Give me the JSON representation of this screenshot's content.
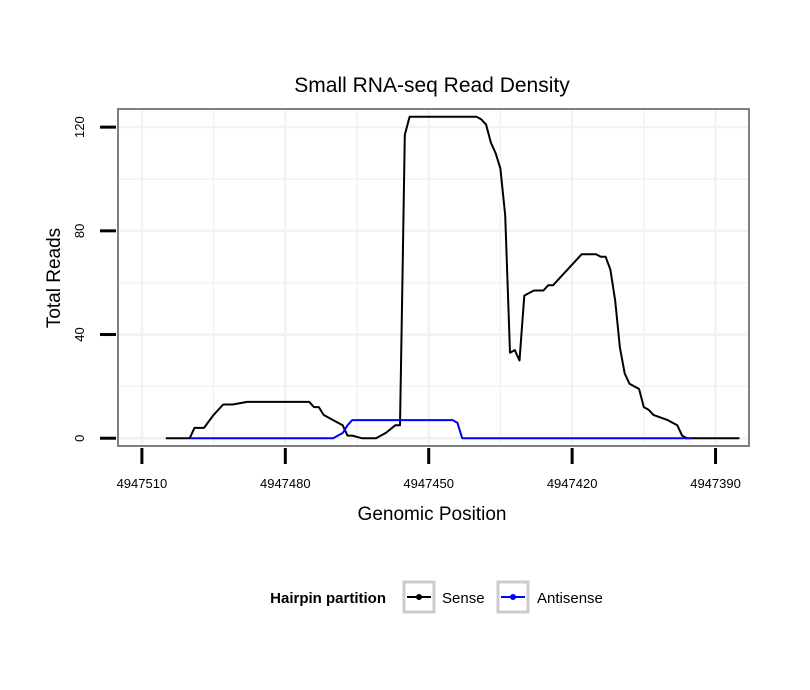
{
  "chart_data": {
    "type": "line",
    "title": "Small RNA-seq Read Density",
    "xlabel": "Genomic Position",
    "ylabel": "Total Reads",
    "x_reversed": true,
    "xlim": [
      4947515,
      4947383
    ],
    "ylim": [
      -3,
      127
    ],
    "x_ticks": [
      4947510,
      4947480,
      4947450,
      4947420,
      4947390
    ],
    "x_tick_labels": [
      "4947510",
      "4947480",
      "4947450",
      "4947420",
      "4947390"
    ],
    "y_ticks": [
      0,
      40,
      80,
      120
    ],
    "y_tick_labels": [
      "0",
      "40",
      "80",
      "120"
    ],
    "grid": true,
    "legend": {
      "title": "Hairpin partition",
      "position": "bottom",
      "entries": [
        "Sense",
        "Antisense"
      ]
    },
    "series": [
      {
        "name": "Sense",
        "color": "#000000",
        "x": [
          4947505,
          4947500,
          4947499,
          4947497,
          4947495,
          4947493,
          4947491,
          4947488,
          4947486,
          4947482,
          4947479,
          4947477,
          4947475,
          4947474,
          4947473,
          4947472,
          4947470,
          4947468,
          4947467,
          4947466,
          4947464,
          4947461,
          4947459,
          4947457,
          4947456,
          4947455.5,
          4947455,
          4947454,
          4947445,
          4947440,
          4947439,
          4947438,
          4947437,
          4947436,
          4947435,
          4947434,
          4947433,
          4947432,
          4947431,
          4947430,
          4947428,
          4947426,
          4947425,
          4947424,
          4947418,
          4947416,
          4947415,
          4947414,
          4947413,
          4947412,
          4947411,
          4947410,
          4947409,
          4947408,
          4947406,
          4947405,
          4947404,
          4947403,
          4947400,
          4947398,
          4947397,
          4947396,
          4947395,
          4947385
        ],
        "y": [
          0,
          0,
          4,
          4,
          9,
          13,
          13,
          14,
          14,
          14,
          14,
          14,
          14,
          12,
          12,
          9,
          7,
          5,
          1,
          1,
          0,
          0,
          2,
          5,
          5,
          60,
          117,
          124,
          124,
          124,
          123,
          121,
          114,
          110,
          104,
          86,
          33,
          34,
          30,
          55,
          57,
          57,
          59,
          59,
          71,
          71,
          71,
          70,
          70,
          65,
          53,
          35,
          25,
          21,
          19,
          12,
          11,
          9,
          7,
          5,
          1,
          0,
          0,
          0
        ]
      },
      {
        "name": "Antisense",
        "color": "#0000ff",
        "x": [
          4947500,
          4947470,
          4947468,
          4947467,
          4947466,
          4947452,
          4947451,
          4947450,
          4947449,
          4947448,
          4947447,
          4947446,
          4947445,
          4947444,
          4947443,
          4947395
        ],
        "y": [
          0,
          0,
          2,
          5,
          7,
          7,
          7,
          7,
          7,
          7,
          7,
          7,
          7,
          6,
          0,
          0
        ]
      }
    ]
  }
}
